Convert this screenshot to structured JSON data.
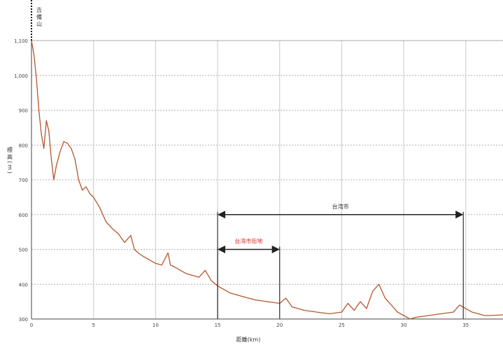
{
  "chart_data": {
    "type": "line",
    "title": "",
    "xlabel": "距離(km)",
    "ylabel": "標高(m)",
    "top_label": "吉備山",
    "xlim": [
      0,
      38
    ],
    "ylim": [
      300,
      1100
    ],
    "xticks": [
      0,
      5,
      10,
      15,
      20,
      25,
      30,
      35
    ],
    "yticks": [
      300,
      400,
      500,
      600,
      700,
      800,
      900,
      1000,
      1100
    ],
    "ytick_labels": [
      "300",
      "400",
      "500",
      "600",
      "700",
      "800",
      "900",
      "1,000",
      "1,100"
    ],
    "grid": true,
    "series": [
      {
        "color": "#b5562c",
        "x": [
          0,
          0.2,
          0.4,
          0.6,
          0.8,
          1.0,
          1.2,
          1.4,
          1.6,
          1.8,
          2.0,
          2.3,
          2.6,
          2.9,
          3.2,
          3.5,
          3.8,
          4.1,
          4.4,
          4.7,
          5.0,
          5.5,
          6.0,
          6.5,
          7.0,
          7.5,
          8.0,
          8.3,
          8.6,
          9.0,
          9.5,
          10.0,
          10.5,
          11.0,
          11.2,
          11.5,
          12.0,
          12.5,
          13.0,
          13.5,
          14.0,
          14.5,
          15.0,
          15.5,
          16.0,
          17.0,
          18.0,
          19.0,
          20.0,
          20.5,
          21.0,
          22.0,
          23.0,
          24.0,
          25.0,
          25.5,
          26.0,
          26.5,
          27.0,
          27.5,
          28.0,
          28.5,
          29.0,
          29.5,
          30.0,
          30.5,
          31.0,
          32.0,
          33.0,
          34.0,
          34.5,
          35.0,
          35.5,
          36.0,
          36.5,
          37.0,
          38.0
        ],
        "y": [
          1100,
          1060,
          990,
          900,
          830,
          790,
          870,
          840,
          760,
          700,
          740,
          780,
          810,
          805,
          790,
          760,
          700,
          670,
          680,
          660,
          650,
          620,
          580,
          560,
          545,
          520,
          540,
          500,
          490,
          480,
          470,
          460,
          455,
          490,
          455,
          450,
          440,
          430,
          425,
          420,
          440,
          410,
          395,
          385,
          375,
          365,
          355,
          350,
          345,
          360,
          335,
          325,
          320,
          315,
          320,
          345,
          325,
          350,
          330,
          380,
          400,
          360,
          340,
          320,
          310,
          300,
          305,
          310,
          315,
          320,
          340,
          330,
          320,
          315,
          310,
          310,
          312
        ]
      }
    ],
    "annotations": [
      {
        "label": "台湾市",
        "x0": 15.0,
        "x1": 34.8,
        "y": 600,
        "color": "#333333"
      },
      {
        "label": "台湾市街地",
        "x0": 15.0,
        "x1": 20.0,
        "y": 500,
        "color": "#d03030"
      }
    ]
  }
}
